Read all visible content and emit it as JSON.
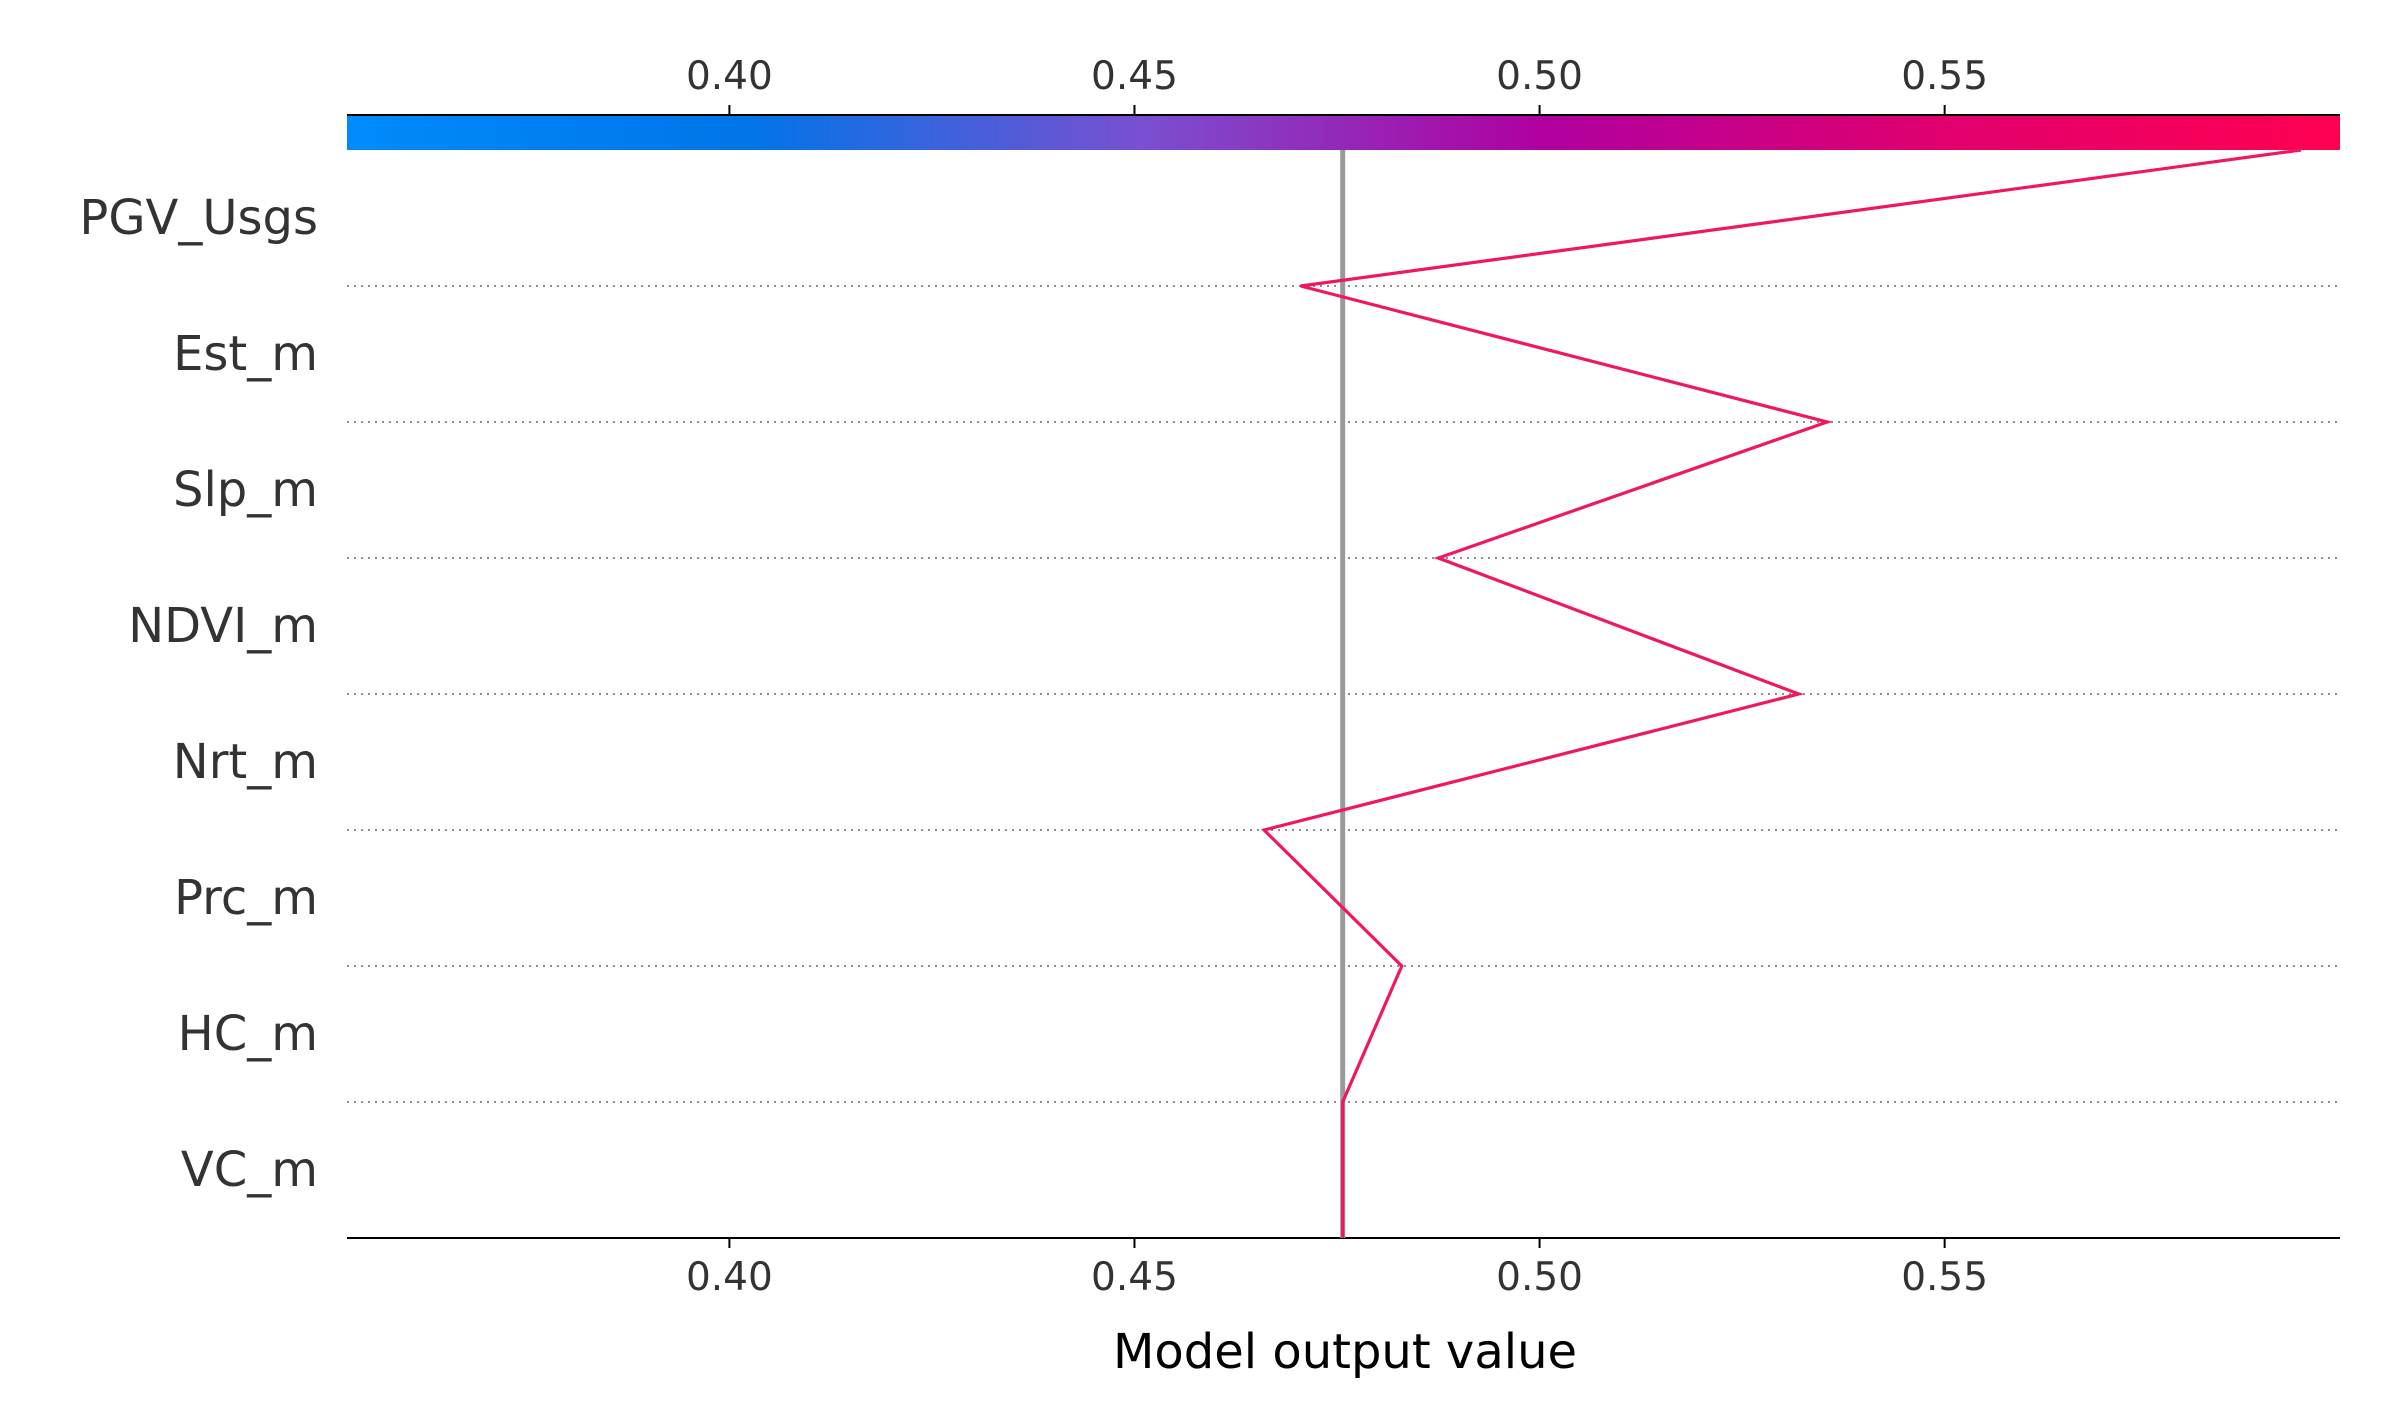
{
  "chart_data": {
    "type": "line",
    "chart_kind": "shap-decision-plot",
    "xlabel": "Model output value",
    "xlim": [
      0.3528,
      0.5988
    ],
    "xticks": [
      0.4,
      0.45,
      0.5,
      0.55
    ],
    "xtick_labels": [
      "0.40",
      "0.45",
      "0.50",
      "0.55"
    ],
    "base_value": 0.4757,
    "features": [
      "PGV_Usgs",
      "Est_m",
      "Slp_m",
      "NDVI_m",
      "Nrt_m",
      "Prc_m",
      "HC_m",
      "VC_m"
    ],
    "path_x": [
      0.594,
      0.4705,
      0.5355,
      0.4875,
      0.532,
      0.466,
      0.483,
      0.4757
    ],
    "line_color": "#f0185c",
    "base_line_color": "#999999",
    "colorbar_colors": [
      "#008bfb",
      "#0075e8",
      "#7a4fd0",
      "#b000a0",
      "#e0006e",
      "#ff0051"
    ],
    "grid": "dotted-horizontal"
  }
}
